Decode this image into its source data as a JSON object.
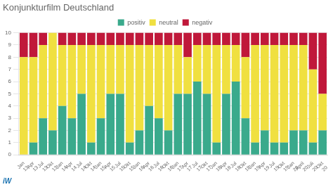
{
  "chart_data": {
    "type": "bar",
    "title": "Konjunkturfilm Deutschland",
    "categories": [
      "Jan\n13",
      "Apr\n13",
      "Jul\n13",
      "Okt\n13",
      "Jan\n14",
      "Apr\n14",
      "Jul\n14",
      "Okt\n14",
      "Jan\n15",
      "Apr\n15",
      "Jul\n15",
      "Okt\n15",
      "Jan\n16",
      "Apr\n16",
      "Jul\n16",
      "Okt\n16",
      "Jan\n17",
      "Apr\n17",
      "Jul\n17",
      "Okt\n17",
      "Jan\n18",
      "Apr\n18",
      "Jul\n18",
      "Okt\n18",
      "Jan\n19",
      "Apr\n19",
      "Jul\n19",
      "Okt\n19",
      "Jan\n20",
      "April\n20",
      "Juli\n20",
      "Okt\n20"
    ],
    "series": [
      {
        "name": "positiv",
        "color": "#3aaa8c",
        "values": [
          0,
          1,
          3,
          2,
          4,
          3,
          5,
          1,
          3,
          5,
          5,
          1,
          2,
          4,
          3,
          2,
          5,
          5,
          6,
          5,
          1,
          5,
          6,
          3,
          1,
          2,
          1,
          1,
          2,
          2,
          1,
          2
        ]
      },
      {
        "name": "neutral",
        "color": "#f0e040",
        "values": [
          8,
          7,
          6,
          8,
          5,
          6,
          4,
          8,
          6,
          4,
          4,
          8,
          7,
          5,
          6,
          7,
          4,
          3,
          3,
          4,
          8,
          4,
          3,
          5,
          8,
          7,
          8,
          8,
          7,
          7,
          6,
          3
        ]
      },
      {
        "name": "negativ",
        "color": "#c0183a",
        "values": [
          2,
          2,
          1,
          0,
          1,
          1,
          1,
          1,
          1,
          1,
          1,
          1,
          1,
          1,
          1,
          1,
          1,
          2,
          1,
          1,
          1,
          1,
          1,
          2,
          1,
          1,
          1,
          1,
          1,
          1,
          3,
          5
        ]
      }
    ],
    "stacked": true,
    "ylim": [
      0,
      10
    ],
    "yticks": [
      0,
      1,
      2,
      3,
      4,
      5,
      6,
      7,
      8,
      9,
      10
    ],
    "grid": true,
    "legend": "top",
    "annotations": [
      {
        "text": "iW",
        "color": "#1a72b0"
      }
    ]
  }
}
